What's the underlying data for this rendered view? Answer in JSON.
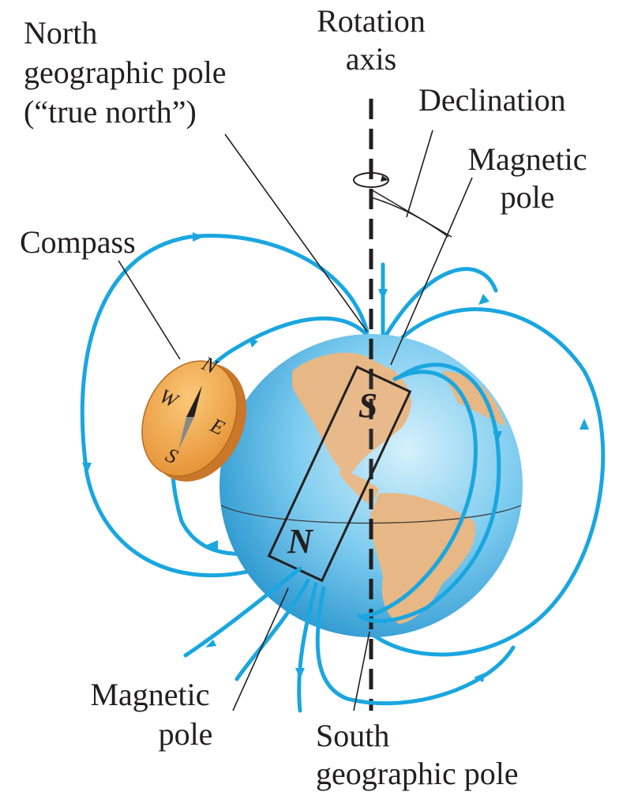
{
  "labels": {
    "north_geographic_pole": [
      "North",
      "geographic pole",
      "(“true north”)"
    ],
    "rotation_axis": [
      "Rotation",
      "axis"
    ],
    "declination": "Declination",
    "magnetic_pole_top": [
      "Magnetic",
      "pole"
    ],
    "compass": "Compass",
    "magnetic_pole_bottom": [
      "Magnetic",
      "pole"
    ],
    "south_geographic_pole": [
      "South",
      "geographic pole"
    ]
  },
  "magnet": {
    "south_end": "S",
    "north_end": "N"
  },
  "compass_dial": {
    "north": "N",
    "east": "E",
    "south": "S",
    "west": "W"
  }
}
